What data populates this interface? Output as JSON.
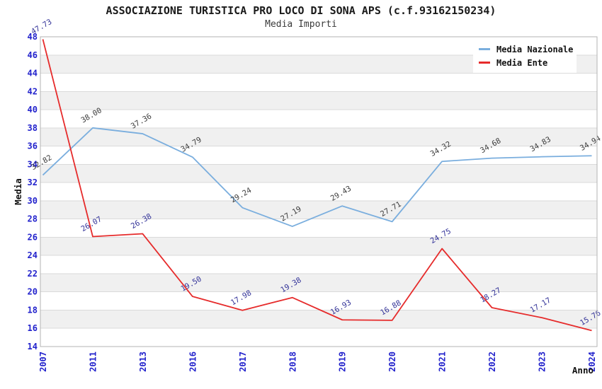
{
  "chart_data": {
    "type": "line",
    "title": "ASSOCIAZIONE TURISTICA PRO LOCO DI SONA APS (c.f.93162150234)",
    "subtitle": "Media Importi",
    "categories": [
      "2007",
      "2011",
      "2013",
      "2016",
      "2017",
      "2018",
      "2019",
      "2020",
      "2021",
      "2022",
      "2023",
      "2024"
    ],
    "series": [
      {
        "name": "Media Nazionale",
        "color": "#7aaede",
        "label_color": "#3c3c3c",
        "values": [
          32.82,
          38.0,
          37.36,
          34.79,
          29.24,
          27.19,
          29.43,
          27.71,
          34.32,
          34.68,
          34.83,
          34.94
        ]
      },
      {
        "name": "Media Ente",
        "color": "#e62b2b",
        "label_color": "#333399",
        "values": [
          47.73,
          26.07,
          26.38,
          19.5,
          17.98,
          19.38,
          16.93,
          16.88,
          24.75,
          18.27,
          17.17,
          15.76
        ]
      }
    ],
    "xlabel": "Anno",
    "ylabel": "Media",
    "ylim": [
      14,
      48
    ],
    "ytick_step": 2,
    "tick_color": "#2222cc",
    "band_colors": [
      "#ffffff",
      "#f0f0f0"
    ],
    "grid_line_color": "#dadada",
    "border_color": "#b3b3b3",
    "grid": true,
    "legend_position": "top-right"
  }
}
